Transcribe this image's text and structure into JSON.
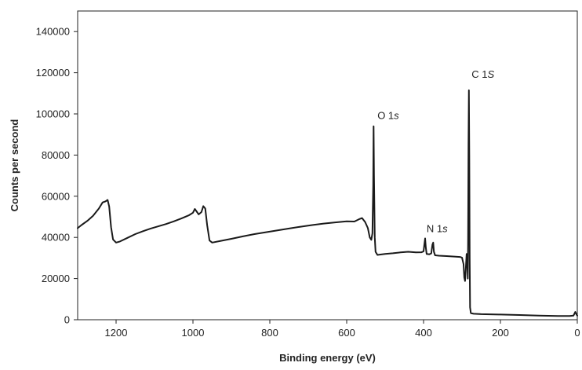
{
  "chart_data": {
    "type": "line",
    "xlabel": "Binding energy (eV)",
    "ylabel": "Counts per second",
    "xlim": [
      1300,
      0
    ],
    "ylim": [
      0,
      150000
    ],
    "x_reversed": true,
    "grid": false,
    "legend": "none",
    "x_ticks": [
      {
        "value": 1200,
        "label": "1200"
      },
      {
        "value": 1000,
        "label": "1000"
      },
      {
        "value": 800,
        "label": "800"
      },
      {
        "value": 600,
        "label": "600"
      },
      {
        "value": 400,
        "label": "400"
      },
      {
        "value": 200,
        "label": "200"
      },
      {
        "value": 0,
        "label": "0"
      }
    ],
    "y_ticks": [
      {
        "value": 0,
        "label": "0"
      },
      {
        "value": 20000,
        "label": "20000"
      },
      {
        "value": 40000,
        "label": "40000"
      },
      {
        "value": 60000,
        "label": "60000"
      },
      {
        "value": 80000,
        "label": "80000"
      },
      {
        "value": 100000,
        "label": "100000"
      },
      {
        "value": 120000,
        "label": "120000"
      },
      {
        "value": 140000,
        "label": "140000"
      }
    ],
    "series": [
      {
        "color": "#1a1a1a",
        "points": [
          [
            1300,
            44500
          ],
          [
            1290,
            46000
          ],
          [
            1275,
            48000
          ],
          [
            1260,
            50500
          ],
          [
            1245,
            54000
          ],
          [
            1235,
            57000
          ],
          [
            1228,
            57500
          ],
          [
            1222,
            58200
          ],
          [
            1218,
            55000
          ],
          [
            1213,
            45000
          ],
          [
            1208,
            39000
          ],
          [
            1200,
            37500
          ],
          [
            1190,
            38000
          ],
          [
            1170,
            39800
          ],
          [
            1150,
            41600
          ],
          [
            1130,
            43000
          ],
          [
            1110,
            44300
          ],
          [
            1090,
            45400
          ],
          [
            1070,
            46500
          ],
          [
            1050,
            47800
          ],
          [
            1030,
            49200
          ],
          [
            1010,
            50800
          ],
          [
            1000,
            52000
          ],
          [
            995,
            53800
          ],
          [
            990,
            52500
          ],
          [
            985,
            51200
          ],
          [
            978,
            52300
          ],
          [
            973,
            55200
          ],
          [
            968,
            54000
          ],
          [
            963,
            46000
          ],
          [
            957,
            38500
          ],
          [
            950,
            37500
          ],
          [
            930,
            38200
          ],
          [
            900,
            39300
          ],
          [
            870,
            40500
          ],
          [
            840,
            41600
          ],
          [
            810,
            42500
          ],
          [
            780,
            43400
          ],
          [
            750,
            44300
          ],
          [
            720,
            45200
          ],
          [
            690,
            46000
          ],
          [
            660,
            46700
          ],
          [
            630,
            47300
          ],
          [
            600,
            47800
          ],
          [
            580,
            47700
          ],
          [
            568,
            48800
          ],
          [
            560,
            49400
          ],
          [
            552,
            47500
          ],
          [
            545,
            44500
          ],
          [
            540,
            40000
          ],
          [
            536,
            38800
          ],
          [
            533,
            42000
          ],
          [
            531,
            65000
          ],
          [
            530,
            94000
          ],
          [
            529,
            70000
          ],
          [
            527,
            40000
          ],
          [
            525,
            33000
          ],
          [
            520,
            31500
          ],
          [
            500,
            32000
          ],
          [
            480,
            32300
          ],
          [
            460,
            32700
          ],
          [
            440,
            33000
          ],
          [
            420,
            32700
          ],
          [
            405,
            32800
          ],
          [
            400,
            33200
          ],
          [
            398,
            36500
          ],
          [
            396,
            39500
          ],
          [
            394,
            35000
          ],
          [
            392,
            32000
          ],
          [
            385,
            31800
          ],
          [
            380,
            32200
          ],
          [
            377,
            36500
          ],
          [
            375,
            37500
          ],
          [
            373,
            33000
          ],
          [
            370,
            31300
          ],
          [
            360,
            31100
          ],
          [
            340,
            30900
          ],
          [
            320,
            30700
          ],
          [
            305,
            30500
          ],
          [
            300,
            30200
          ],
          [
            296,
            27000
          ],
          [
            294,
            20500
          ],
          [
            292,
            18800
          ],
          [
            290,
            25000
          ],
          [
            288,
            32000
          ],
          [
            286,
            26000
          ],
          [
            285,
            20000
          ],
          [
            284,
            40000
          ],
          [
            283,
            85000
          ],
          [
            282,
            111500
          ],
          [
            281,
            80000
          ],
          [
            280,
            30000
          ],
          [
            279,
            6000
          ],
          [
            277,
            3200
          ],
          [
            270,
            2900
          ],
          [
            250,
            2700
          ],
          [
            200,
            2500
          ],
          [
            150,
            2300
          ],
          [
            100,
            2000
          ],
          [
            50,
            1800
          ],
          [
            20,
            1800
          ],
          [
            10,
            2000
          ],
          [
            5,
            3800
          ],
          [
            2,
            2500
          ],
          [
            0,
            2000
          ]
        ]
      }
    ],
    "annotations": [
      {
        "text": "C 1",
        "italic": "S",
        "x": 275,
        "y": 117500
      },
      {
        "text": "O 1",
        "italic": "s",
        "x": 520,
        "y": 97500
      },
      {
        "text": "N 1",
        "italic": "s",
        "x": 392,
        "y": 42500
      }
    ]
  }
}
